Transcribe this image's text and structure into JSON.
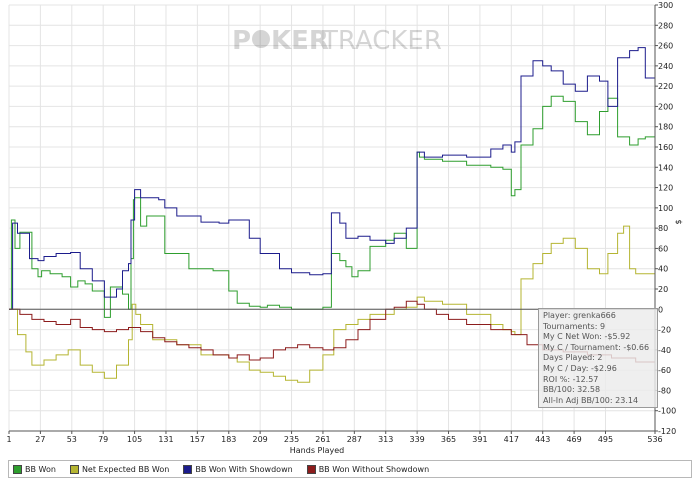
{
  "brand": {
    "logo_text_left": "P",
    "logo_text_mid": "KER",
    "logo_text_right": "TRACKER"
  },
  "chart_data": {
    "type": "line",
    "title": "",
    "xlabel": "Hands Played",
    "ylabel": "$",
    "xlim": [
      1,
      536
    ],
    "ylim": [
      -120,
      300
    ],
    "x_ticks": [
      1,
      27,
      53,
      79,
      105,
      131,
      157,
      183,
      209,
      235,
      261,
      287,
      313,
      339,
      365,
      391,
      417,
      443,
      469,
      495,
      536
    ],
    "y_ticks": [
      -120,
      -100,
      -80,
      -60,
      -40,
      -20,
      0,
      20,
      40,
      60,
      80,
      100,
      120,
      140,
      160,
      180,
      200,
      220,
      240,
      260,
      280,
      300
    ],
    "series": [
      {
        "name": "BB Won",
        "color": "#2e9e2e",
        "x": [
          1,
          3,
          6,
          10,
          20,
          25,
          28,
          35,
          45,
          52,
          58,
          64,
          70,
          80,
          85,
          95,
          100,
          102,
          104,
          105,
          110,
          115,
          130,
          150,
          170,
          183,
          190,
          200,
          209,
          215,
          225,
          235,
          245,
          261,
          268,
          275,
          280,
          285,
          290,
          300,
          313,
          320,
          330,
          339,
          341,
          345,
          360,
          380,
          400,
          410,
          417,
          420,
          425,
          435,
          443,
          450,
          460,
          470,
          480,
          490,
          497,
          505,
          515,
          522,
          528,
          536
        ],
        "y": [
          0,
          88,
          60,
          76,
          40,
          32,
          38,
          35,
          32,
          22,
          28,
          25,
          18,
          -8,
          22,
          15,
          0,
          50,
          108,
          110,
          82,
          92,
          55,
          40,
          38,
          18,
          6,
          3,
          2,
          4,
          2,
          0,
          0,
          2,
          55,
          48,
          42,
          32,
          38,
          62,
          68,
          75,
          60,
          155,
          150,
          148,
          146,
          142,
          140,
          138,
          112,
          118,
          162,
          178,
          200,
          210,
          205,
          185,
          172,
          195,
          208,
          170,
          162,
          168,
          170,
          165
        ]
      },
      {
        "name": "Net Expected BB Won",
        "color": "#b5b532",
        "x": [
          1,
          8,
          15,
          20,
          30,
          40,
          50,
          60,
          70,
          80,
          90,
          100,
          103,
          106,
          110,
          120,
          140,
          160,
          183,
          190,
          200,
          209,
          220,
          230,
          240,
          250,
          261,
          270,
          280,
          290,
          300,
          313,
          320,
          330,
          339,
          345,
          360,
          380,
          400,
          410,
          417,
          420,
          425,
          435,
          443,
          450,
          460,
          470,
          480,
          490,
          497,
          505,
          510,
          515,
          520,
          528,
          536
        ],
        "y": [
          0,
          -25,
          -42,
          -55,
          -50,
          -45,
          -40,
          -55,
          -62,
          -68,
          -55,
          -30,
          5,
          -5,
          -15,
          -30,
          -35,
          -45,
          -48,
          -52,
          -60,
          -62,
          -66,
          -70,
          -72,
          -60,
          -45,
          -20,
          -15,
          -10,
          -5,
          -5,
          0,
          2,
          12,
          8,
          5,
          -5,
          -15,
          -20,
          -22,
          -25,
          30,
          45,
          55,
          65,
          70,
          60,
          40,
          35,
          55,
          75,
          82,
          40,
          35,
          35,
          38
        ]
      },
      {
        "name": "BB Won With Showdown",
        "color": "#1c1c8c",
        "x": [
          1,
          4,
          8,
          18,
          25,
          30,
          40,
          52,
          60,
          70,
          80,
          90,
          95,
          100,
          102,
          105,
          110,
          115,
          125,
          130,
          140,
          160,
          175,
          183,
          200,
          209,
          225,
          235,
          250,
          261,
          268,
          275,
          280,
          290,
          300,
          313,
          320,
          330,
          339,
          345,
          360,
          380,
          400,
          410,
          417,
          420,
          425,
          435,
          443,
          450,
          460,
          470,
          480,
          490,
          497,
          505,
          515,
          522,
          528,
          536
        ],
        "y": [
          0,
          85,
          75,
          50,
          48,
          52,
          55,
          56,
          40,
          28,
          12,
          20,
          38,
          45,
          88,
          118,
          110,
          110,
          108,
          100,
          92,
          86,
          85,
          88,
          70,
          55,
          40,
          36,
          34,
          35,
          95,
          85,
          70,
          72,
          68,
          65,
          70,
          80,
          155,
          150,
          152,
          150,
          158,
          162,
          155,
          165,
          230,
          245,
          240,
          235,
          222,
          215,
          230,
          225,
          200,
          248,
          255,
          258,
          228,
          225
        ]
      },
      {
        "name": "BB Won Without Showdown",
        "color": "#8c1c1c",
        "x": [
          1,
          10,
          20,
          30,
          40,
          52,
          60,
          70,
          80,
          90,
          100,
          110,
          120,
          130,
          140,
          150,
          160,
          170,
          183,
          190,
          200,
          209,
          220,
          230,
          240,
          250,
          261,
          270,
          280,
          290,
          300,
          313,
          320,
          330,
          339,
          345,
          355,
          365,
          380,
          400,
          417,
          430,
          443,
          460,
          480,
          500,
          520,
          536
        ],
        "y": [
          0,
          -5,
          -10,
          -12,
          -15,
          -10,
          -18,
          -20,
          -22,
          -20,
          -18,
          -22,
          -28,
          -32,
          -35,
          -38,
          -40,
          -45,
          -48,
          -45,
          -50,
          -48,
          -40,
          -38,
          -35,
          -38,
          -40,
          -38,
          -30,
          -20,
          -10,
          0,
          2,
          8,
          5,
          0,
          -5,
          -10,
          -15,
          -20,
          -25,
          -35,
          -40,
          -42,
          -45,
          -48,
          -52,
          -55
        ]
      }
    ]
  },
  "tooltip": {
    "player": "Player: grenka666",
    "tournaments": "Tournaments: 9",
    "net_won": "My C Net Won: -$5.92",
    "per_tournament": "My C / Tournament: -$0.66",
    "days_played": "Days Played: 2",
    "per_day": "My C / Day: -$2.96",
    "roi": "ROI %: -12.57",
    "bb100": "BB/100: 32.58",
    "allin_bb100": "All-In Adj BB/100: 23.14"
  },
  "legend": [
    "BB Won",
    "Net Expected BB Won",
    "BB Won With Showdown",
    "BB Won Without Showdown"
  ],
  "colors": {
    "grid": "#e4e4e4",
    "axis": "#555555",
    "zero_line": "#555555"
  }
}
